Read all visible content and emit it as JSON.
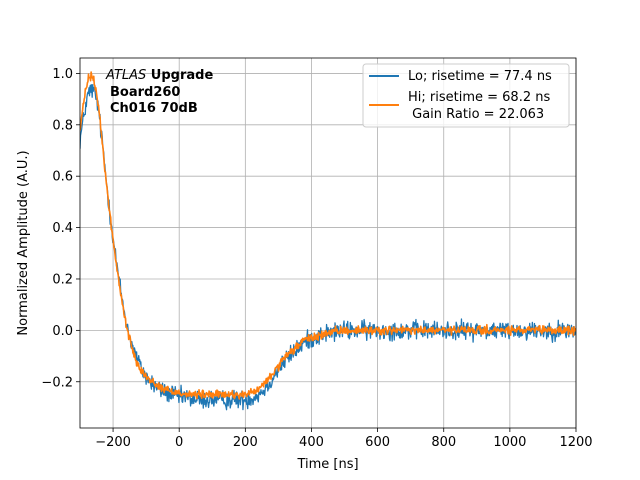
{
  "chart_data": {
    "type": "line",
    "title": "",
    "xlabel": "Time [ns]",
    "ylabel": "Normalized Amplitude (A.U.)",
    "xlim": [
      -300,
      1200
    ],
    "ylim": [
      -0.38,
      1.06
    ],
    "grid": true,
    "xticks": [
      -200,
      0,
      200,
      400,
      600,
      800,
      1000,
      1200
    ],
    "yticks": [
      -0.2,
      0.0,
      0.2,
      0.4,
      0.6,
      0.8,
      1.0
    ],
    "xtick_labels": [
      "−200",
      "0",
      "200",
      "400",
      "600",
      "800",
      "1000",
      "1200"
    ],
    "ytick_labels": [
      "−0.2",
      "0.0",
      "0.2",
      "0.4",
      "0.6",
      "0.8",
      "1.0"
    ],
    "annotation": {
      "line1_italic": "ATLAS",
      "line1_bold": " Upgrade",
      "line2": "Board260",
      "line3": "Ch016 70dB"
    },
    "legend": {
      "placement": "upper right",
      "entries": [
        {
          "label": "Lo; risetime = 77.4 ns",
          "color": "#1f77b4"
        },
        {
          "label": "Hi; risetime = 68.2 ns",
          "label2": " Gain Ratio = 22.063",
          "color": "#ff7f0e"
        }
      ]
    },
    "series": [
      {
        "name": "Lo; risetime = 77.4 ns",
        "color": "#1f77b4",
        "noise": 0.018,
        "x": [
          -300,
          -285,
          -275,
          -265,
          -255,
          -245,
          -230,
          -215,
          -200,
          -185,
          -170,
          -155,
          -140,
          -125,
          -110,
          -95,
          -80,
          -60,
          -40,
          -20,
          0,
          25,
          50,
          75,
          100,
          125,
          150,
          175,
          200,
          225,
          250,
          275,
          300,
          325,
          350,
          375,
          400,
          425,
          450,
          500,
          550,
          600,
          650,
          700,
          800,
          900,
          1000,
          1100,
          1200
        ],
        "y": [
          0.74,
          0.86,
          0.92,
          0.94,
          0.92,
          0.87,
          0.7,
          0.52,
          0.36,
          0.22,
          0.1,
          0.0,
          -0.07,
          -0.12,
          -0.16,
          -0.19,
          -0.21,
          -0.23,
          -0.24,
          -0.25,
          -0.26,
          -0.26,
          -0.27,
          -0.27,
          -0.27,
          -0.27,
          -0.27,
          -0.27,
          -0.27,
          -0.26,
          -0.24,
          -0.2,
          -0.15,
          -0.11,
          -0.08,
          -0.05,
          -0.03,
          -0.02,
          -0.01,
          0.0,
          0.0,
          0.0,
          0.0,
          0.0,
          0.0,
          0.0,
          0.0,
          0.0,
          0.0
        ]
      },
      {
        "name": "Hi; risetime = 68.2 ns",
        "color": "#ff7f0e",
        "noise": 0.008,
        "x": [
          -300,
          -285,
          -275,
          -265,
          -255,
          -245,
          -230,
          -215,
          -200,
          -185,
          -170,
          -155,
          -140,
          -125,
          -110,
          -95,
          -80,
          -60,
          -40,
          -20,
          0,
          25,
          50,
          75,
          100,
          125,
          150,
          175,
          200,
          225,
          250,
          275,
          300,
          325,
          350,
          375,
          400,
          425,
          450,
          500,
          550,
          600,
          650,
          700,
          800,
          900,
          1000,
          1100,
          1200
        ],
        "y": [
          0.78,
          0.92,
          0.98,
          0.99,
          0.96,
          0.88,
          0.7,
          0.51,
          0.35,
          0.21,
          0.09,
          -0.01,
          -0.08,
          -0.13,
          -0.16,
          -0.19,
          -0.2,
          -0.22,
          -0.23,
          -0.24,
          -0.24,
          -0.25,
          -0.25,
          -0.25,
          -0.25,
          -0.25,
          -0.25,
          -0.25,
          -0.25,
          -0.24,
          -0.22,
          -0.18,
          -0.14,
          -0.1,
          -0.07,
          -0.04,
          -0.03,
          -0.02,
          -0.01,
          0.0,
          0.0,
          0.0,
          0.0,
          0.0,
          0.0,
          0.0,
          0.0,
          0.0,
          0.0
        ]
      }
    ]
  }
}
